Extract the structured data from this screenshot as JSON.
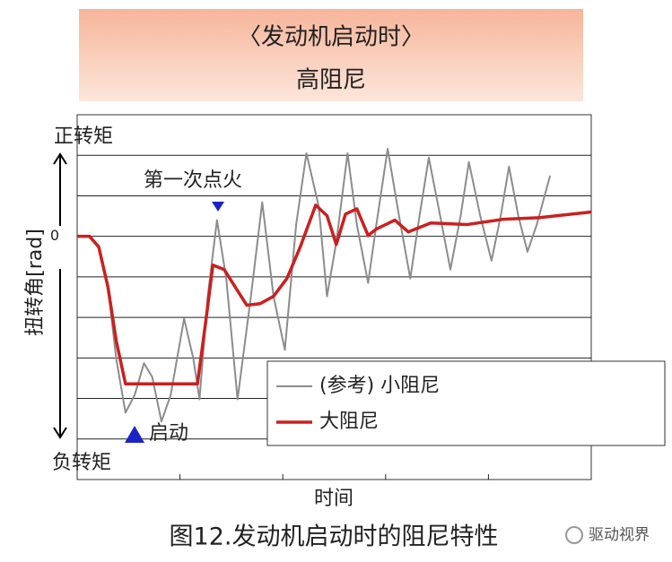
{
  "chart_data": {
    "type": "line",
    "title": "〈发动机启动时〉",
    "subtitle": "高阻尼",
    "ylabel": "扭转角[rad]",
    "xlabel": "时间",
    "caption": "图12.发动机启动时的阻尼特性",
    "watermark": "驱动视界",
    "annotations": [
      "正转矩",
      "负转矩",
      "第一次点火",
      "启动"
    ],
    "xlim": [
      0,
      5
    ],
    "ylim": [
      -6,
      3
    ],
    "yticks": [
      0
    ],
    "grid": true,
    "series": [
      {
        "name": "(参考) 小阻尼",
        "color": "#8c8c8c",
        "x": [
          0,
          0.12,
          0.21,
          0.3,
          0.38,
          0.47,
          0.56,
          0.65,
          0.73,
          0.82,
          0.91,
          1.04,
          1.13,
          1.19,
          1.27,
          1.36,
          1.45,
          1.56,
          1.69,
          1.8,
          1.91,
          2.02,
          2.13,
          2.23,
          2.35,
          2.43,
          2.52,
          2.63,
          2.72,
          2.83,
          2.91,
          3.02,
          3.13,
          3.24,
          3.33,
          3.42,
          3.53,
          3.63,
          3.73,
          3.81,
          3.92,
          4.03,
          4.12,
          4.2,
          4.29,
          4.38,
          4.47,
          4.6
        ],
        "values": [
          0,
          0,
          -0.26,
          -1.26,
          -3.02,
          -4.35,
          -3.91,
          -3.13,
          -3.47,
          -4.57,
          -3.91,
          -2.03,
          -3.02,
          -4.02,
          -1.48,
          0.4,
          -1.04,
          -4.02,
          -1.48,
          0.84,
          -1.48,
          -2.8,
          0.29,
          2.05,
          0.73,
          -1.48,
          -0.15,
          2.05,
          0.29,
          -1.15,
          0.29,
          2.16,
          0.51,
          -1.04,
          0.51,
          1.94,
          0.51,
          -0.82,
          0.51,
          1.83,
          0.51,
          -0.6,
          0.51,
          1.72,
          0.51,
          -0.38,
          0.29,
          1.5
        ]
      },
      {
        "name": "大阻尼",
        "color": "#cc1f1f",
        "x": [
          0,
          0.12,
          0.21,
          0.3,
          0.38,
          0.47,
          1.17,
          1.26,
          1.32,
          1.43,
          1.54,
          1.65,
          1.78,
          1.91,
          2.04,
          2.17,
          2.32,
          2.43,
          2.52,
          2.61,
          2.72,
          2.83,
          2.91,
          3.09,
          3.22,
          3.44,
          3.79,
          4.14,
          4.49,
          5.0
        ],
        "values": [
          0,
          0,
          -0.26,
          -1.26,
          -2.58,
          -3.64,
          -3.64,
          -1.92,
          -0.71,
          -0.82,
          -1.26,
          -1.7,
          -1.66,
          -1.48,
          -1.04,
          -0.26,
          0.77,
          0.51,
          -0.2,
          0.55,
          0.68,
          0.02,
          0.18,
          0.4,
          0.11,
          0.33,
          0.29,
          0.42,
          0.46,
          0.6
        ]
      }
    ]
  }
}
